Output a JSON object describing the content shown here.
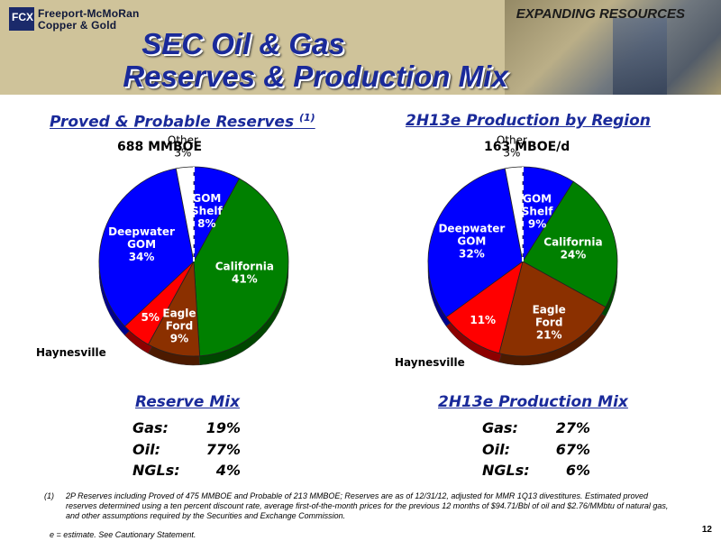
{
  "header": {
    "company_line1": "Freeport-McMoRan",
    "company_line2": "Copper & Gold",
    "logo_mark": "FCX",
    "tagline": "EXPANDING RESOURCES",
    "title_line1": "SEC Oil & Gas",
    "title_line2": "Reserves & Production Mix"
  },
  "left": {
    "heading": "Proved & Probable Reserves",
    "heading_sup": "(1)",
    "subheading": "688 MMBOE",
    "haynesville_label": "Haynesville",
    "mix_heading": "Reserve Mix",
    "mix": [
      {
        "label": "Gas:",
        "value": "19%"
      },
      {
        "label": "Oil:",
        "value": "77%"
      },
      {
        "label": "NGLs:",
        "value": "4%"
      }
    ]
  },
  "right": {
    "heading": "2H13e Production by Region",
    "subheading": "163 MBOE/d",
    "haynesville_label": "Haynesville",
    "mix_heading": "2H13e Production Mix",
    "mix": [
      {
        "label": "Gas:",
        "value": "27%"
      },
      {
        "label": "Oil:",
        "value": "67%"
      },
      {
        "label": "NGLs:",
        "value": "6%"
      }
    ]
  },
  "chart_data": [
    {
      "type": "pie",
      "title": "Proved & Probable Reserves",
      "categories": [
        "GOM Shelf",
        "California",
        "Eagle Ford",
        "Haynesville",
        "Deepwater GOM",
        "Other"
      ],
      "values": [
        8,
        41,
        9,
        5,
        34,
        3
      ],
      "labels": [
        [
          "GOM",
          "Shelf",
          "8%"
        ],
        [
          "California",
          "41%"
        ],
        [
          "Eagle",
          "Ford",
          "9%"
        ],
        [
          "5%"
        ],
        [
          "Deepwater",
          "GOM",
          "34%"
        ],
        [
          "Other",
          "3%"
        ]
      ],
      "colors": [
        "#0000ff",
        "#008000",
        "#8b3000",
        "#ff0000",
        "#0000ff",
        "#ffffff"
      ]
    },
    {
      "type": "pie",
      "title": "2H13e Production by Region",
      "categories": [
        "GOM Shelf",
        "California",
        "Eagle Ford",
        "Haynesville",
        "Deepwater GOM",
        "Other"
      ],
      "values": [
        9,
        24,
        21,
        11,
        32,
        3
      ],
      "labels": [
        [
          "GOM",
          "Shelf",
          "9%"
        ],
        [
          "California",
          "24%"
        ],
        [
          "Eagle",
          "Ford",
          "21%"
        ],
        [
          "11%"
        ],
        [
          "Deepwater",
          "GOM",
          "32%"
        ],
        [
          "Other",
          "3%"
        ]
      ],
      "colors": [
        "#0000ff",
        "#008000",
        "#8b3000",
        "#ff0000",
        "#0000ff",
        "#ffffff"
      ]
    }
  ],
  "footnote": {
    "number": "(1)",
    "text": "2P Reserves including Proved of 475 MMBOE and Probable of 213 MMBOE; Reserves are as of 12/31/12, adjusted for MMR 1Q13 divestitures. Estimated proved reserves determined using a ten percent discount rate, average first-of-the-month prices for the previous 12 months of $94.71/Bbl of oil and $2.76/MMbtu of natural gas, and other assumptions required by the Securities and Exchange Commission.",
    "estimate_note": "e = estimate. See Cautionary Statement.",
    "page_number": "12"
  }
}
